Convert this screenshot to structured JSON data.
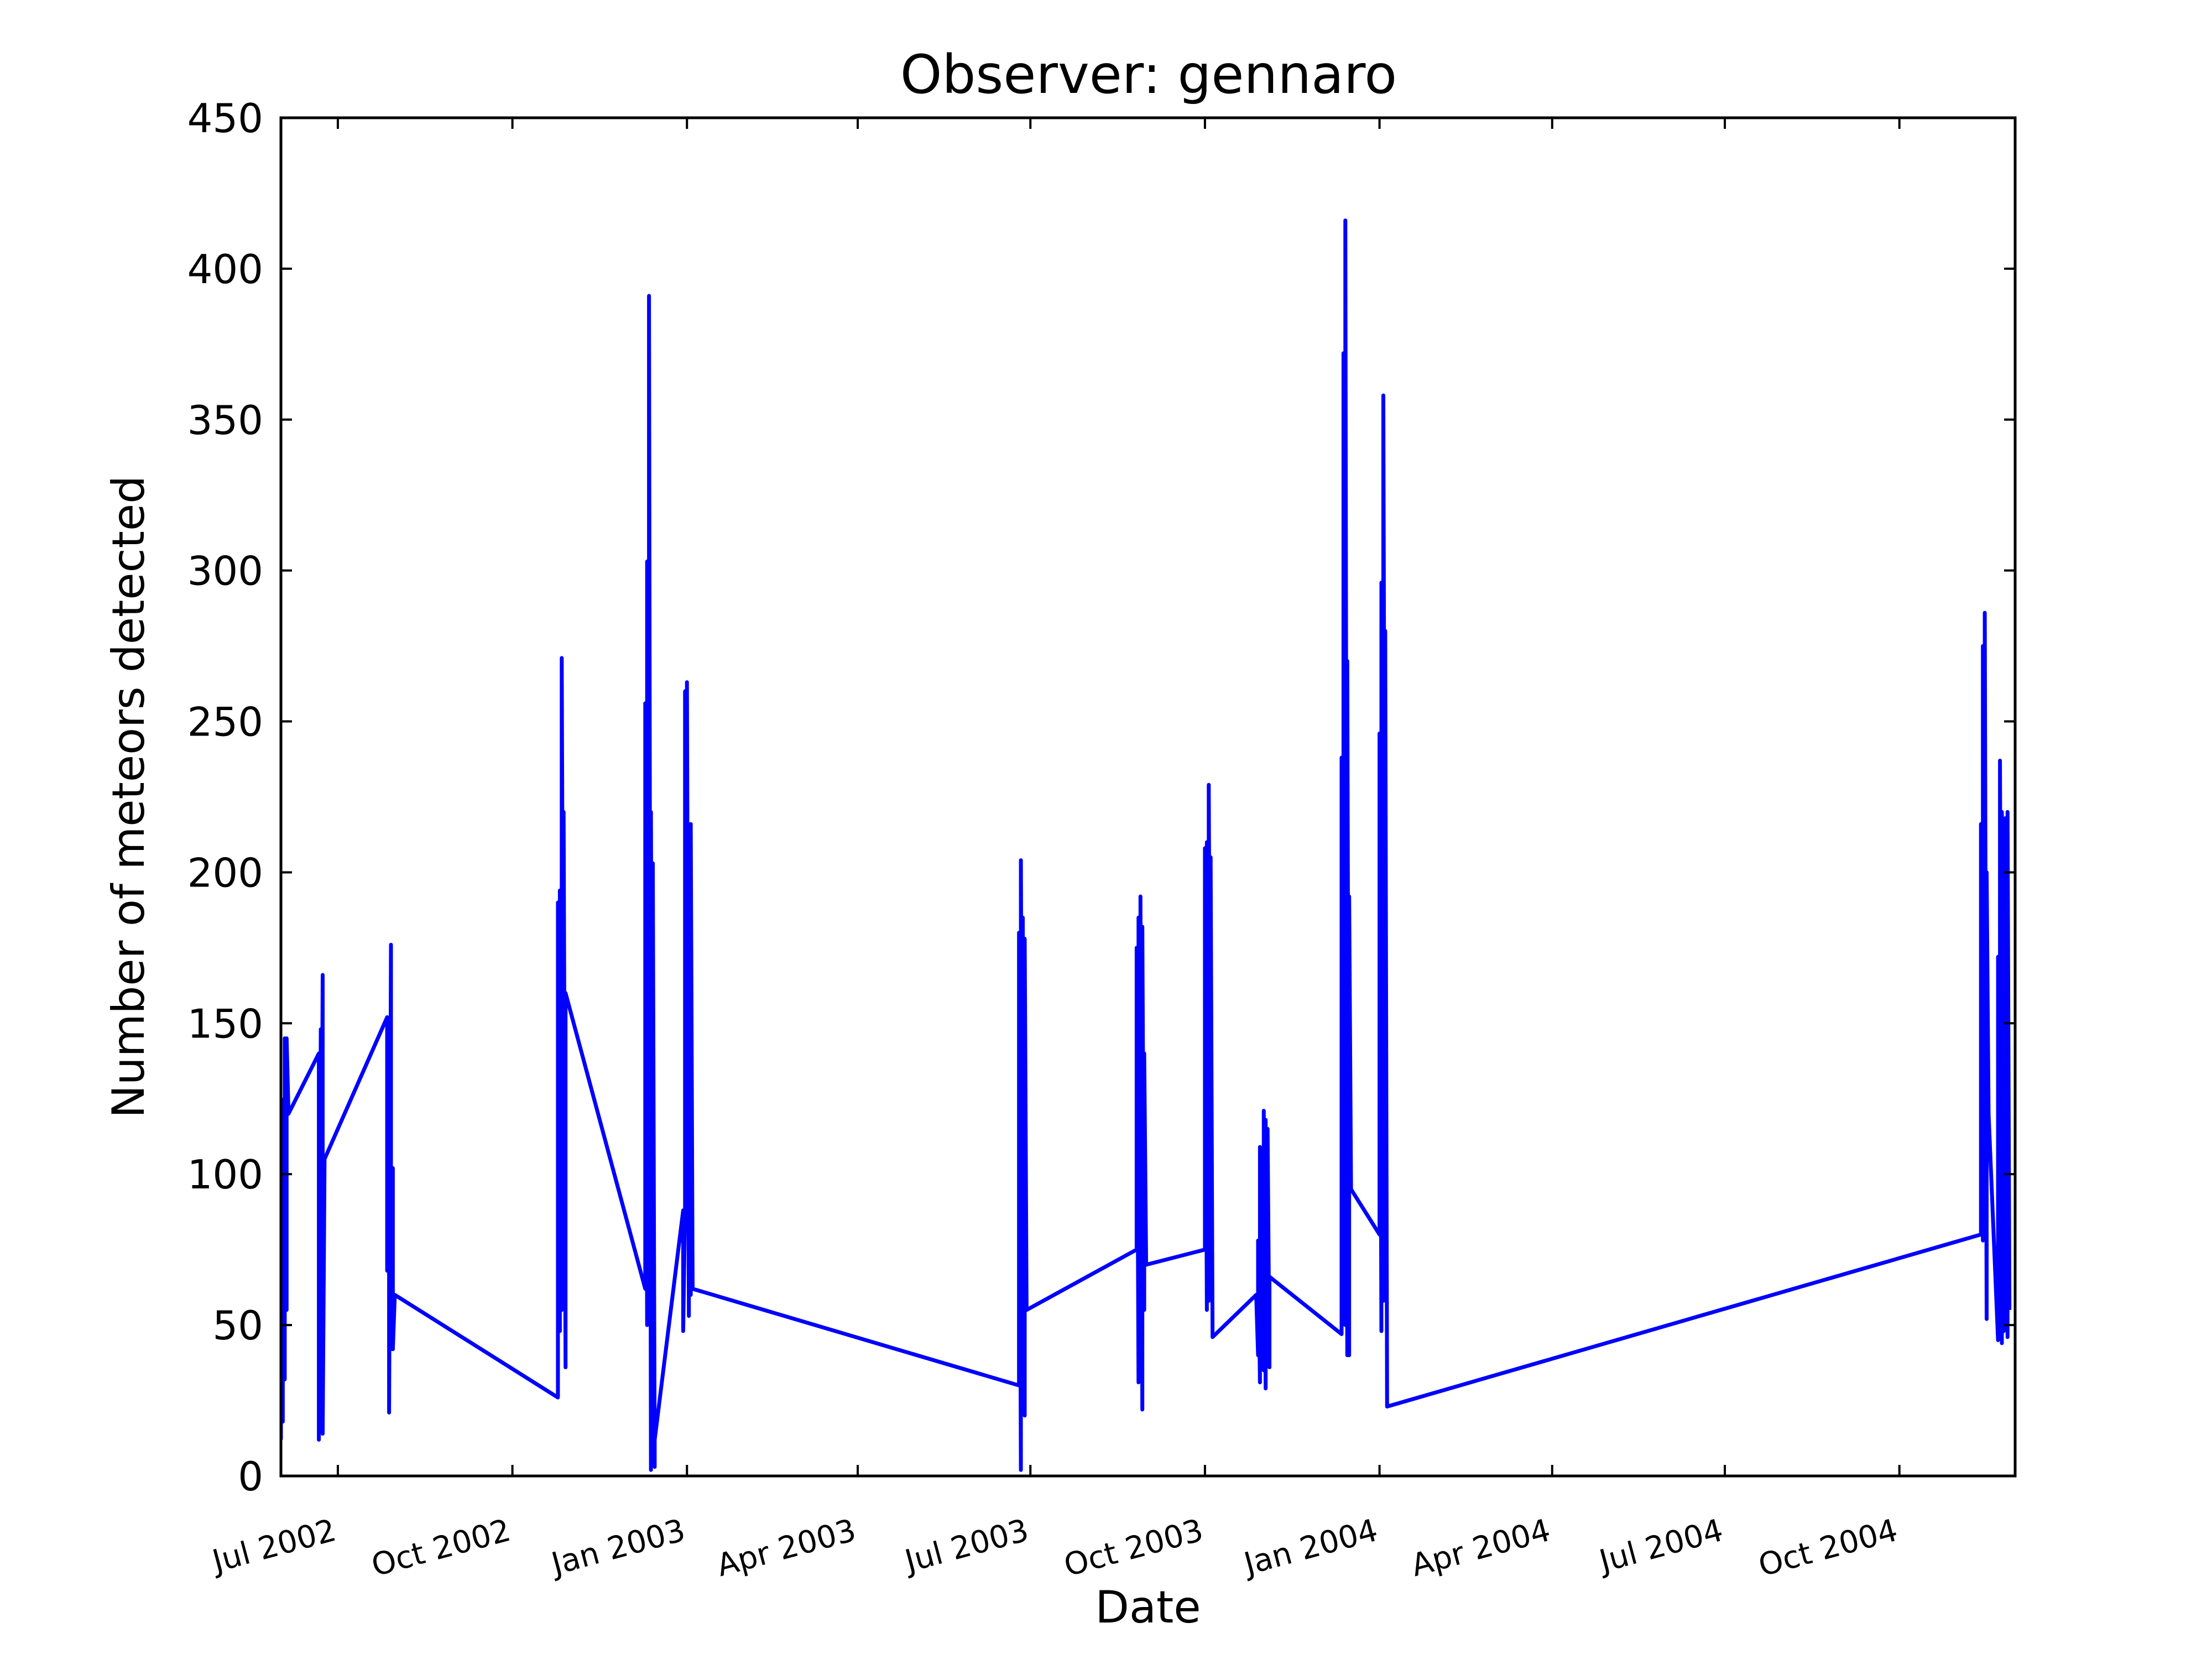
{
  "chart_data": {
    "type": "line",
    "title": "Observer: gennaro",
    "xlabel": "Date",
    "ylabel": "Number of meteors detected",
    "xlim": [
      "2002-06-01",
      "2004-12-01"
    ],
    "ylim": [
      0,
      450
    ],
    "y_ticks": [
      0,
      50,
      100,
      150,
      200,
      250,
      300,
      350,
      400,
      450
    ],
    "x_ticks": [
      {
        "date": "2002-07-01",
        "label": "Jul 2002"
      },
      {
        "date": "2002-10-01",
        "label": "Oct 2002"
      },
      {
        "date": "2003-01-01",
        "label": "Jan 2003"
      },
      {
        "date": "2003-04-01",
        "label": "Apr 2003"
      },
      {
        "date": "2003-07-01",
        "label": "Jul 2003"
      },
      {
        "date": "2003-10-01",
        "label": "Oct 2003"
      },
      {
        "date": "2004-01-01",
        "label": "Jan 2004"
      },
      {
        "date": "2004-04-01",
        "label": "Apr 2004"
      },
      {
        "date": "2004-07-01",
        "label": "Jul 2004"
      },
      {
        "date": "2004-10-01",
        "label": "Oct 2004"
      }
    ],
    "grid": false,
    "legend": "none",
    "series": [
      {
        "color": "#0000ff",
        "points": [
          [
            "2002-06-01",
            12
          ],
          [
            "2002-06-01",
            125
          ],
          [
            "2002-06-02",
            18
          ],
          [
            "2002-06-02",
            110
          ],
          [
            "2002-06-03",
            32
          ],
          [
            "2002-06-03",
            145
          ],
          [
            "2002-06-04",
            55
          ],
          [
            "2002-06-04",
            145
          ],
          [
            "2002-06-05",
            120
          ],
          [
            "2002-06-21",
            140
          ],
          [
            "2002-06-21",
            12
          ],
          [
            "2002-06-22",
            148
          ],
          [
            "2002-06-22",
            30
          ],
          [
            "2002-06-23",
            166
          ],
          [
            "2002-06-23",
            14
          ],
          [
            "2002-06-24",
            105
          ],
          [
            "2002-07-27",
            152
          ],
          [
            "2002-07-27",
            68
          ],
          [
            "2002-07-28",
            140
          ],
          [
            "2002-07-28",
            21
          ],
          [
            "2002-07-29",
            176
          ],
          [
            "2002-07-29",
            42
          ],
          [
            "2002-07-30",
            102
          ],
          [
            "2002-07-30",
            42
          ],
          [
            "2002-07-31",
            60
          ],
          [
            "2002-10-25",
            26
          ],
          [
            "2002-10-25",
            190
          ],
          [
            "2002-10-26",
            48
          ],
          [
            "2002-10-26",
            194
          ],
          [
            "2002-10-27",
            55
          ],
          [
            "2002-10-27",
            271
          ],
          [
            "2002-10-28",
            95
          ],
          [
            "2002-10-28",
            220
          ],
          [
            "2002-10-29",
            36
          ],
          [
            "2002-10-29",
            160
          ],
          [
            "2002-12-10",
            62
          ],
          [
            "2002-12-10",
            256
          ],
          [
            "2002-12-11",
            50
          ],
          [
            "2002-12-11",
            303
          ],
          [
            "2002-12-12",
            55
          ],
          [
            "2002-12-12",
            391
          ],
          [
            "2002-12-13",
            2
          ],
          [
            "2002-12-13",
            220
          ],
          [
            "2002-12-14",
            50
          ],
          [
            "2002-12-14",
            203
          ],
          [
            "2002-12-15",
            3
          ],
          [
            "2002-12-15",
            12
          ],
          [
            "2002-12-30",
            88
          ],
          [
            "2002-12-30",
            48
          ],
          [
            "2002-12-31",
            88
          ],
          [
            "2002-12-31",
            260
          ],
          [
            "2003-01-01",
            95
          ],
          [
            "2003-01-01",
            263
          ],
          [
            "2003-01-02",
            53
          ],
          [
            "2003-01-02",
            140
          ],
          [
            "2003-01-03",
            60
          ],
          [
            "2003-01-03",
            216
          ],
          [
            "2003-01-04",
            62
          ],
          [
            "2003-06-25",
            30
          ],
          [
            "2003-06-25",
            180
          ],
          [
            "2003-06-26",
            2
          ],
          [
            "2003-06-26",
            204
          ],
          [
            "2003-06-27",
            50
          ],
          [
            "2003-06-27",
            185
          ],
          [
            "2003-06-28",
            20
          ],
          [
            "2003-06-28",
            178
          ],
          [
            "2003-06-29",
            55
          ],
          [
            "2003-08-26",
            75
          ],
          [
            "2003-08-26",
            175
          ],
          [
            "2003-08-27",
            31
          ],
          [
            "2003-08-27",
            185
          ],
          [
            "2003-08-28",
            40
          ],
          [
            "2003-08-28",
            192
          ],
          [
            "2003-08-29",
            22
          ],
          [
            "2003-08-29",
            182
          ],
          [
            "2003-08-30",
            55
          ],
          [
            "2003-08-30",
            140
          ],
          [
            "2003-08-31",
            70
          ],
          [
            "2003-10-01",
            75
          ],
          [
            "2003-10-01",
            208
          ],
          [
            "2003-10-02",
            55
          ],
          [
            "2003-10-02",
            210
          ],
          [
            "2003-10-03",
            58
          ],
          [
            "2003-10-03",
            229
          ],
          [
            "2003-10-04",
            90
          ],
          [
            "2003-10-04",
            205
          ],
          [
            "2003-10-05",
            46
          ],
          [
            "2003-10-28",
            60
          ],
          [
            "2003-10-29",
            40
          ],
          [
            "2003-10-29",
            78
          ],
          [
            "2003-10-30",
            31
          ],
          [
            "2003-10-30",
            109
          ],
          [
            "2003-10-31",
            38
          ],
          [
            "2003-10-31",
            75
          ],
          [
            "2003-11-01",
            35
          ],
          [
            "2003-11-01",
            121
          ],
          [
            "2003-11-02",
            29
          ],
          [
            "2003-11-02",
            118
          ],
          [
            "2003-11-03",
            40
          ],
          [
            "2003-11-03",
            115
          ],
          [
            "2003-11-04",
            36
          ],
          [
            "2003-11-04",
            66
          ],
          [
            "2003-12-12",
            47
          ],
          [
            "2003-12-12",
            238
          ],
          [
            "2003-12-13",
            140
          ],
          [
            "2003-12-13",
            372
          ],
          [
            "2003-12-14",
            50
          ],
          [
            "2003-12-14",
            416
          ],
          [
            "2003-12-15",
            40
          ],
          [
            "2003-12-15",
            270
          ],
          [
            "2003-12-16",
            40
          ],
          [
            "2003-12-16",
            192
          ],
          [
            "2003-12-17",
            95
          ],
          [
            "2004-01-01",
            80
          ],
          [
            "2004-01-01",
            246
          ],
          [
            "2004-01-02",
            48
          ],
          [
            "2004-01-02",
            296
          ],
          [
            "2004-01-03",
            58
          ],
          [
            "2004-01-03",
            358
          ],
          [
            "2004-01-04",
            130
          ],
          [
            "2004-01-04",
            280
          ],
          [
            "2004-01-05",
            23
          ],
          [
            "2004-11-13",
            80
          ],
          [
            "2004-11-13",
            216
          ],
          [
            "2004-11-14",
            78
          ],
          [
            "2004-11-14",
            275
          ],
          [
            "2004-11-15",
            110
          ],
          [
            "2004-11-15",
            286
          ],
          [
            "2004-11-16",
            52
          ],
          [
            "2004-11-16",
            200
          ],
          [
            "2004-11-17",
            120
          ],
          [
            "2004-11-22",
            45
          ],
          [
            "2004-11-22",
            172
          ],
          [
            "2004-11-23",
            60
          ],
          [
            "2004-11-23",
            237
          ],
          [
            "2004-11-24",
            44
          ],
          [
            "2004-11-24",
            220
          ],
          [
            "2004-11-25",
            48
          ],
          [
            "2004-11-25",
            160
          ],
          [
            "2004-11-26",
            50
          ],
          [
            "2004-11-26",
            218
          ],
          [
            "2004-11-27",
            46
          ],
          [
            "2004-11-27",
            220
          ],
          [
            "2004-11-28",
            55
          ]
        ]
      }
    ]
  }
}
